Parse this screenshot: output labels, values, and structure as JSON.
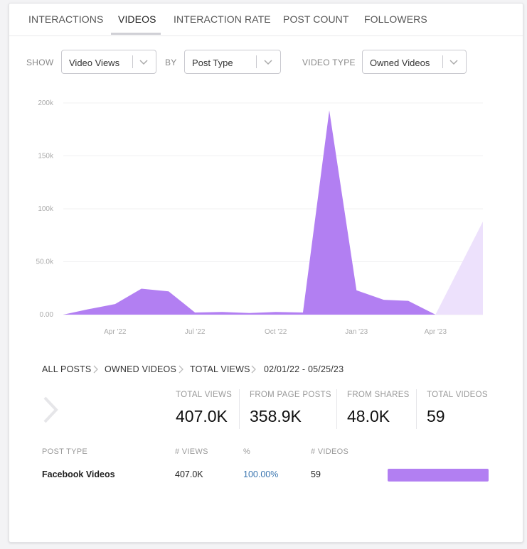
{
  "tabs": [
    {
      "label": "INTERACTIONS"
    },
    {
      "label": "VIDEOS"
    },
    {
      "label": "INTERACTION RATE"
    },
    {
      "label": "POST COUNT"
    },
    {
      "label": "FOLLOWERS"
    }
  ],
  "active_tab": "VIDEOS",
  "filters": {
    "show_label": "SHOW",
    "show_value": "Video Views",
    "by_label": "BY",
    "by_value": "Post Type",
    "video_type_label": "VIDEO TYPE",
    "video_type_value": "Owned Videos"
  },
  "colors": {
    "series": "#b27ff2",
    "series_light": "#ede1fc",
    "link": "#3b76b0"
  },
  "chart_data": {
    "type": "area",
    "x_tick_labels": [
      "Apr '22",
      "Jul '22",
      "Oct '22",
      "Jan '23",
      "Apr '23"
    ],
    "y_tick_labels": [
      "0.00",
      "50.0k",
      "100k",
      "150k",
      "200k"
    ],
    "ylim": [
      0,
      200000
    ],
    "grid": true,
    "x": [
      "2022-02-01",
      "2022-03-01",
      "2022-04-01",
      "2022-05-01",
      "2022-06-01",
      "2022-07-01",
      "2022-08-01",
      "2022-09-01",
      "2022-10-01",
      "2022-11-01",
      "2022-12-01",
      "2023-01-01",
      "2023-02-01",
      "2023-03-01",
      "2023-04-01",
      "2023-05-25"
    ],
    "series": [
      {
        "values": [
          0,
          5000,
          10000,
          24500,
          22000,
          2000,
          2500,
          1500,
          2500,
          2000,
          193000,
          23000,
          14000,
          13000,
          0,
          null
        ]
      },
      {
        "values": [
          null,
          null,
          null,
          null,
          null,
          null,
          null,
          null,
          null,
          null,
          null,
          null,
          null,
          null,
          0,
          88000
        ],
        "partial": true
      }
    ]
  },
  "breadcrumb": {
    "items": [
      "ALL POSTS",
      "OWNED VIDEOS",
      "TOTAL VIEWS"
    ],
    "date_range": "02/01/22 - 05/25/23"
  },
  "stats": [
    {
      "label": "TOTAL VIEWS",
      "value": "407.0K"
    },
    {
      "label": "FROM PAGE POSTS",
      "value": "358.9K"
    },
    {
      "label": "FROM SHARES",
      "value": "48.0K"
    },
    {
      "label": "TOTAL VIDEOS",
      "value": "59"
    }
  ],
  "table": {
    "headers": [
      "POST TYPE",
      "# VIEWS",
      "%",
      "# VIDEOS"
    ],
    "rows": [
      {
        "post_type": "Facebook Videos",
        "views": "407.0K",
        "percent": "100.00%",
        "videos": "59",
        "share": 1.0
      }
    ]
  }
}
